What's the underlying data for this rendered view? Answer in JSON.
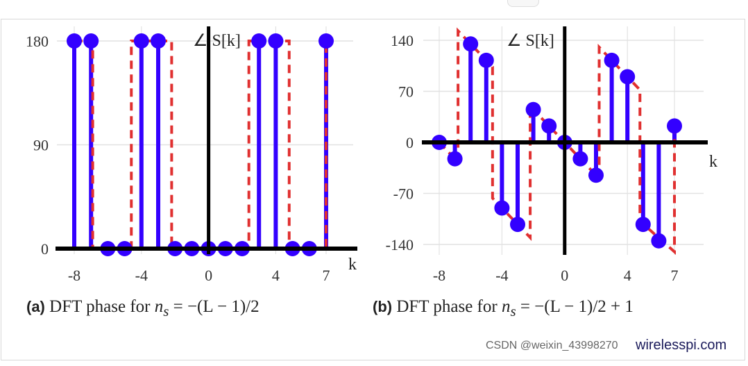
{
  "chart_data": [
    {
      "type": "stem",
      "ylabel": "∠ S[k]",
      "xlabel": "k",
      "xticks": [
        "-8",
        "-4",
        "0",
        "4",
        "7"
      ],
      "yticks": [
        "0",
        "90",
        "180"
      ],
      "xlim": [
        -8,
        7
      ],
      "ylim": [
        0,
        180
      ],
      "grid": true,
      "k": [
        -8,
        -7,
        -6,
        -5,
        -4,
        -3,
        -2,
        -1,
        0,
        1,
        2,
        3,
        4,
        5,
        6,
        7
      ],
      "values": [
        180,
        180,
        0,
        0,
        180,
        180,
        0,
        0,
        0,
        0,
        0,
        180,
        180,
        0,
        0,
        180
      ],
      "continuous_phase": [
        [
          -8,
          180
        ],
        [
          -6.9,
          180
        ],
        [
          -6.9,
          0
        ],
        [
          -4.6,
          0
        ],
        [
          -4.6,
          180
        ],
        [
          -2.2,
          180
        ],
        [
          -2.2,
          0
        ],
        [
          2.4,
          0
        ],
        [
          2.4,
          180
        ],
        [
          4.8,
          180
        ],
        [
          4.8,
          0
        ],
        [
          7,
          0
        ],
        [
          7,
          180
        ]
      ],
      "caption": {
        "label": "(a)",
        "text": "DFT phase for",
        "math_var": "n",
        "math_sub": "s",
        "math_rest": " = −(L − 1)/2"
      }
    },
    {
      "type": "stem",
      "ylabel": "∠ S[k]",
      "xlabel": "k",
      "xticks": [
        "-8",
        "-4",
        "0",
        "4",
        "7"
      ],
      "yticks": [
        "-140",
        "-70",
        "0",
        "70",
        "140"
      ],
      "xlim": [
        -8,
        7
      ],
      "ylim": [
        -140,
        140
      ],
      "grid": true,
      "k": [
        -8,
        -7,
        -6,
        -5,
        -4,
        -3,
        -2,
        -1,
        0,
        1,
        2,
        3,
        4,
        5,
        6,
        7
      ],
      "values": [
        0,
        -22.5,
        135,
        112.5,
        -90,
        -112.5,
        45,
        22.5,
        0,
        -22.5,
        -45,
        112.5,
        90,
        -112.5,
        -135,
        22.5
      ],
      "continuous_phase": [
        [
          -8,
          0
        ],
        [
          -6.8,
          -27
        ],
        [
          -6.8,
          153
        ],
        [
          -4.6,
          103.5
        ],
        [
          -4.6,
          -76.5
        ],
        [
          -2.2,
          -130.5
        ],
        [
          -2.2,
          49.5
        ],
        [
          2.2,
          -49.5
        ],
        [
          2.2,
          130.5
        ],
        [
          4.8,
          72
        ],
        [
          4.8,
          -108
        ],
        [
          7,
          -150
        ],
        [
          7,
          20
        ]
      ],
      "caption": {
        "label": "(b)",
        "text": "DFT phase for",
        "math_var": "n",
        "math_sub": "s",
        "math_rest": " = −(L − 1)/2 + 1"
      }
    }
  ],
  "colors": {
    "stem": "#3300ff",
    "continuous": "#e03030",
    "axis": "#000000",
    "grid": "#e2e2e2"
  },
  "watermark": "wirelesspi.com",
  "overlay_credit": "CSDN @weixin_43998270"
}
